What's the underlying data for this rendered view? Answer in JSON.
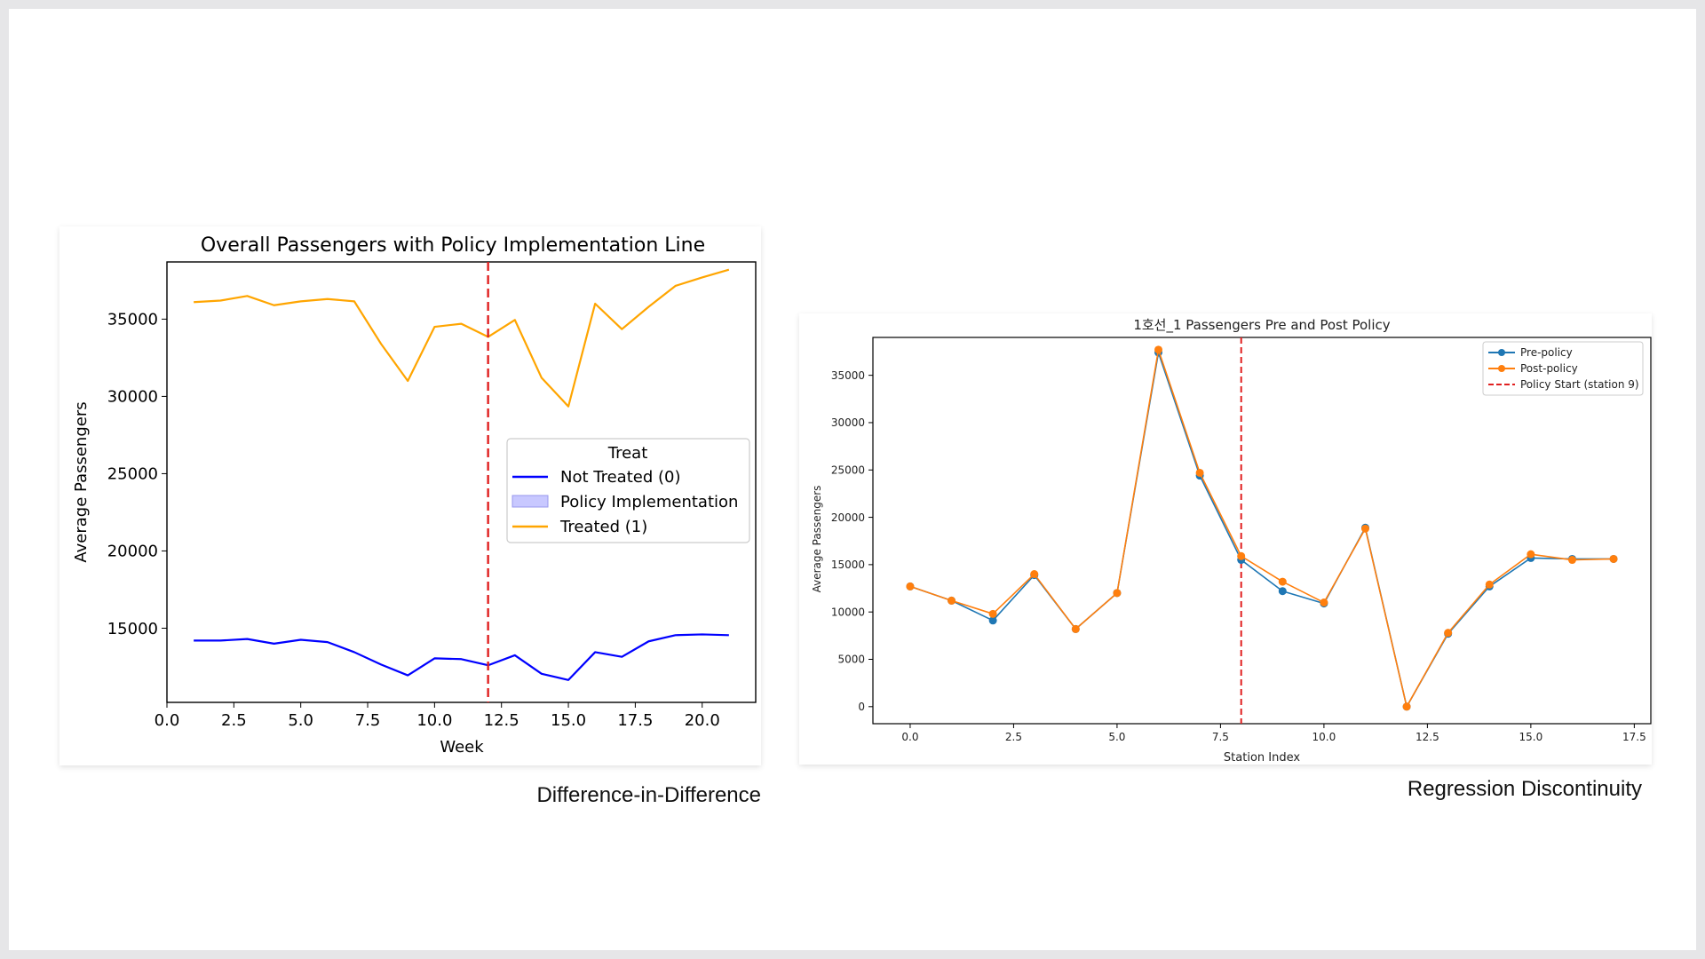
{
  "charts": {
    "did": {
      "caption": "Difference-in-Difference",
      "chart_data": {
        "type": "line",
        "title": "Overall Passengers with Policy Implementation Line",
        "xlabel": "Week",
        "ylabel": "Average Passengers",
        "xlim": [
          0,
          22.0
        ],
        "ylim": [
          10200,
          38700
        ],
        "xticks": [
          "0.0",
          "2.5",
          "5.0",
          "7.5",
          "10.0",
          "12.5",
          "15.0",
          "17.5",
          "20.0"
        ],
        "yticks": [
          "15000",
          "20000",
          "25000",
          "30000",
          "35000"
        ],
        "x": [
          1,
          2,
          3,
          4,
          5,
          6,
          7,
          8,
          9,
          10,
          11,
          12,
          13,
          14,
          15,
          16,
          17,
          18,
          19,
          20,
          21
        ],
        "series": [
          {
            "name": "Not Treated (0)",
            "color": "#0000ff",
            "values": [
              14200,
              14200,
              14300,
              14000,
              14250,
              14100,
              13450,
              12650,
              11950,
              13050,
              13000,
              12600,
              13250,
              12050,
              11650,
              13450,
              13150,
              14150,
              14550,
              14600,
              14550
            ]
          },
          {
            "name": "Treated (1)",
            "color": "#ffa500",
            "values": [
              36100,
              36200,
              36500,
              35900,
              36150,
              36300,
              36150,
              33400,
              31000,
              34500,
              34700,
              33850,
              34950,
              31200,
              29350,
              36000,
              34350,
              35800,
              37150,
              37700,
              38200
            ]
          }
        ],
        "policy_line": {
          "x": 12,
          "color": "#e02020",
          "style": "dashed"
        },
        "legend": {
          "title": "Treat",
          "placement": "center-right",
          "entries": [
            "Not Treated (0)",
            "Policy Implementation",
            "Treated (1)"
          ],
          "patch_color": "#c8c8ff"
        }
      }
    },
    "rd": {
      "caption": "Regression Discontinuity",
      "chart_data": {
        "type": "line",
        "title": "1호선_1 Passengers Pre and Post Policy",
        "xlabel": "Station Index",
        "ylabel": "Average Passengers",
        "xlim": [
          -0.9,
          17.9
        ],
        "ylim": [
          -1800,
          39000
        ],
        "xticks": [
          "0.0",
          "2.5",
          "5.0",
          "7.5",
          "10.0",
          "12.5",
          "15.0",
          "17.5"
        ],
        "yticks": [
          "0",
          "5000",
          "10000",
          "15000",
          "20000",
          "25000",
          "30000",
          "35000"
        ],
        "x": [
          0,
          1,
          2,
          3,
          4,
          5,
          6,
          7,
          8,
          9,
          10,
          11,
          12,
          13,
          14,
          15,
          16,
          17
        ],
        "series": [
          {
            "name": "Pre-policy",
            "color": "#1f77b4",
            "values": [
              12700,
              11200,
              9100,
              13900,
              8200,
              12000,
              37400,
              24400,
              15500,
              12200,
              10900,
              18900,
              0,
              7700,
              12700,
              15700,
              15600,
              15600
            ]
          },
          {
            "name": "Post-policy",
            "color": "#ff7f0e",
            "values": [
              12700,
              11200,
              9800,
              14000,
              8200,
              12000,
              37700,
              24700,
              15900,
              13200,
              11000,
              18800,
              0,
              7800,
              12900,
              16100,
              15500,
              15600
            ]
          }
        ],
        "policy_line": {
          "x": 8,
          "name": "Policy Start (station 9)",
          "color": "#e02020",
          "style": "dashed"
        },
        "legend": {
          "placement": "upper-right",
          "entries": [
            "Pre-policy",
            "Post-policy",
            "Policy Start (station 9)"
          ]
        }
      }
    }
  }
}
